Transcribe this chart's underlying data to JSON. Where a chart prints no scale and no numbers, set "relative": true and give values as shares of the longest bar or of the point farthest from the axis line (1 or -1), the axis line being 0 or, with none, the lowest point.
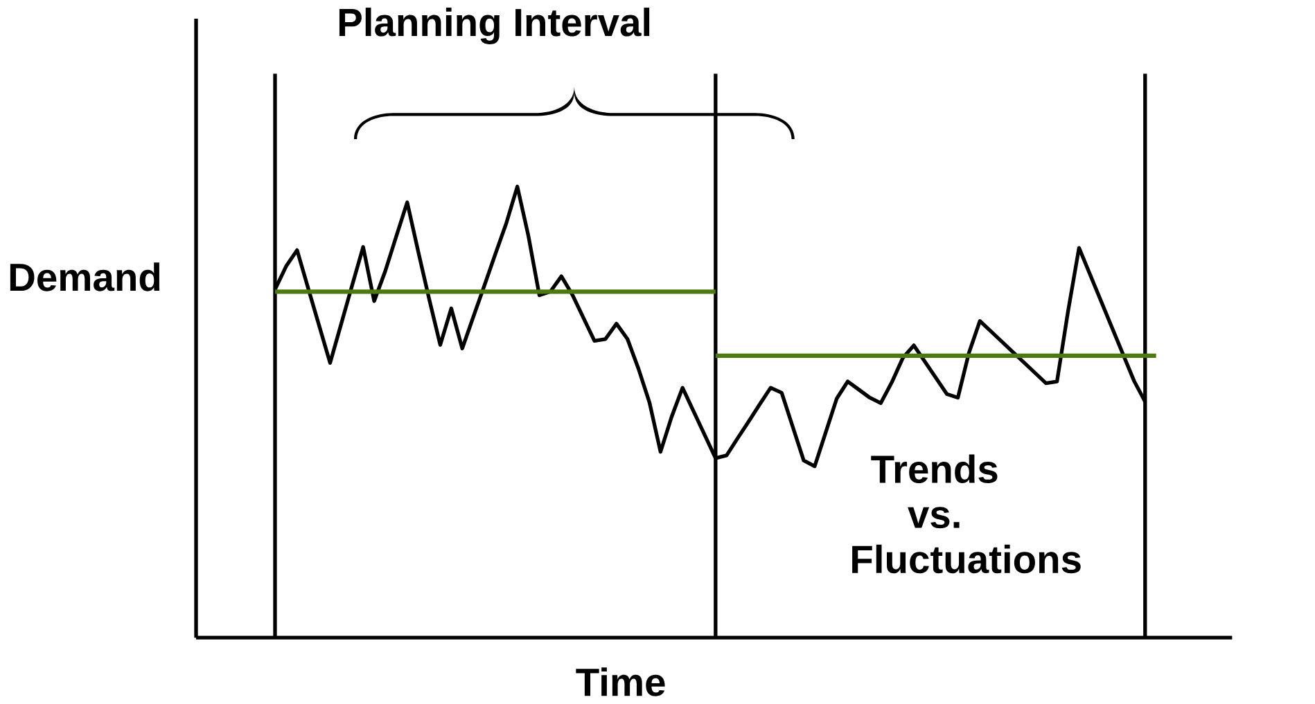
{
  "chart_data": {
    "type": "line",
    "relative": true,
    "title": "Planning Interval",
    "xlabel": "Time",
    "ylabel": "Demand",
    "tick_labels": false,
    "marker": "none",
    "line_style": "solid",
    "categories": [
      null,
      null,
      null,
      null,
      null,
      null,
      null,
      null,
      null,
      null,
      null,
      null,
      null,
      null,
      null,
      null,
      null,
      null,
      null,
      null,
      null,
      null,
      null,
      null,
      null,
      null,
      null,
      null,
      null,
      null,
      null,
      null,
      null,
      null,
      null,
      null,
      null,
      null,
      null,
      null,
      null,
      null,
      null,
      null,
      null,
      null,
      null,
      null,
      null,
      null,
      null,
      null,
      null,
      null,
      null,
      null,
      null,
      null,
      null,
      null,
      null,
      null,
      null,
      null,
      null,
      null,
      null,
      null,
      null,
      null,
      null,
      null,
      null,
      null,
      null,
      null,
      null,
      null,
      null,
      null,
      null
    ],
    "series": [
      {
        "color": "#000000",
        "values": [
          0.772,
          0.823,
          0.859,
          0.775,
          0.692,
          0.609,
          0.695,
          0.781,
          0.866,
          0.746,
          0.812,
          0.889,
          0.965,
          0.856,
          0.75,
          0.649,
          0.73,
          0.641,
          0.711,
          0.78,
          0.85,
          0.919,
          1.0,
          0.891,
          0.759,
          0.767,
          0.801,
          0.76,
          0.709,
          0.658,
          0.662,
          0.696,
          0.662,
          0.596,
          0.521,
          0.412,
          0.489,
          0.554,
          0.502,
          0.45,
          0.398,
          0.404,
          0.442,
          0.479,
          0.517,
          0.554,
          0.543,
          0.468,
          0.393,
          0.38,
          0.455,
          0.53,
          0.568,
          0.55,
          0.532,
          0.52,
          0.566,
          0.62,
          0.648,
          0.612,
          0.576,
          0.54,
          0.532,
          0.631,
          0.702,
          0.679,
          0.656,
          0.633,
          0.61,
          0.587,
          0.564,
          0.568,
          0.723,
          0.864,
          0.805,
          0.746,
          0.687,
          0.628,
          0.569,
          0.523,
          null
        ]
      },
      {
        "color": "#4a7a10",
        "values": [
          0.767,
          0.767,
          0.767,
          0.767,
          0.767,
          0.767,
          0.767,
          0.767,
          0.767,
          0.767,
          0.767,
          0.767,
          0.767,
          0.767,
          0.767,
          0.767,
          0.767,
          0.767,
          0.767,
          0.767,
          0.767,
          0.767,
          0.767,
          0.767,
          0.767,
          0.767,
          0.767,
          0.767,
          0.767,
          0.767,
          0.767,
          0.767,
          0.767,
          0.767,
          0.767,
          0.767,
          0.767,
          0.767,
          0.767,
          0.767,
          0.767,
          null,
          null,
          null,
          null,
          null,
          null,
          null,
          null,
          null,
          null,
          null,
          null,
          null,
          null,
          null,
          null,
          null,
          null,
          null,
          null,
          null,
          null,
          null,
          null,
          null,
          null,
          null,
          null,
          null,
          null,
          null,
          null,
          null,
          null,
          null,
          null,
          null,
          null,
          null,
          null
        ]
      },
      {
        "color": "#4a7a10",
        "values": [
          null,
          null,
          null,
          null,
          null,
          null,
          null,
          null,
          null,
          null,
          null,
          null,
          null,
          null,
          null,
          null,
          null,
          null,
          null,
          null,
          null,
          null,
          null,
          null,
          null,
          null,
          null,
          null,
          null,
          null,
          null,
          null,
          null,
          null,
          null,
          null,
          null,
          null,
          null,
          null,
          0.625,
          0.625,
          0.625,
          0.625,
          0.625,
          0.625,
          0.625,
          0.625,
          0.625,
          0.625,
          0.625,
          0.625,
          0.625,
          0.625,
          0.625,
          0.625,
          0.625,
          0.625,
          0.625,
          0.625,
          0.625,
          0.625,
          0.625,
          0.625,
          0.625,
          0.625,
          0.625,
          0.625,
          0.625,
          0.625,
          0.625,
          0.625,
          0.625,
          0.625,
          0.625,
          0.625,
          0.625,
          0.625,
          0.625,
          0.625,
          0.625
        ]
      }
    ],
    "annotations": [
      "Trends vs. Fluctuations"
    ]
  }
}
